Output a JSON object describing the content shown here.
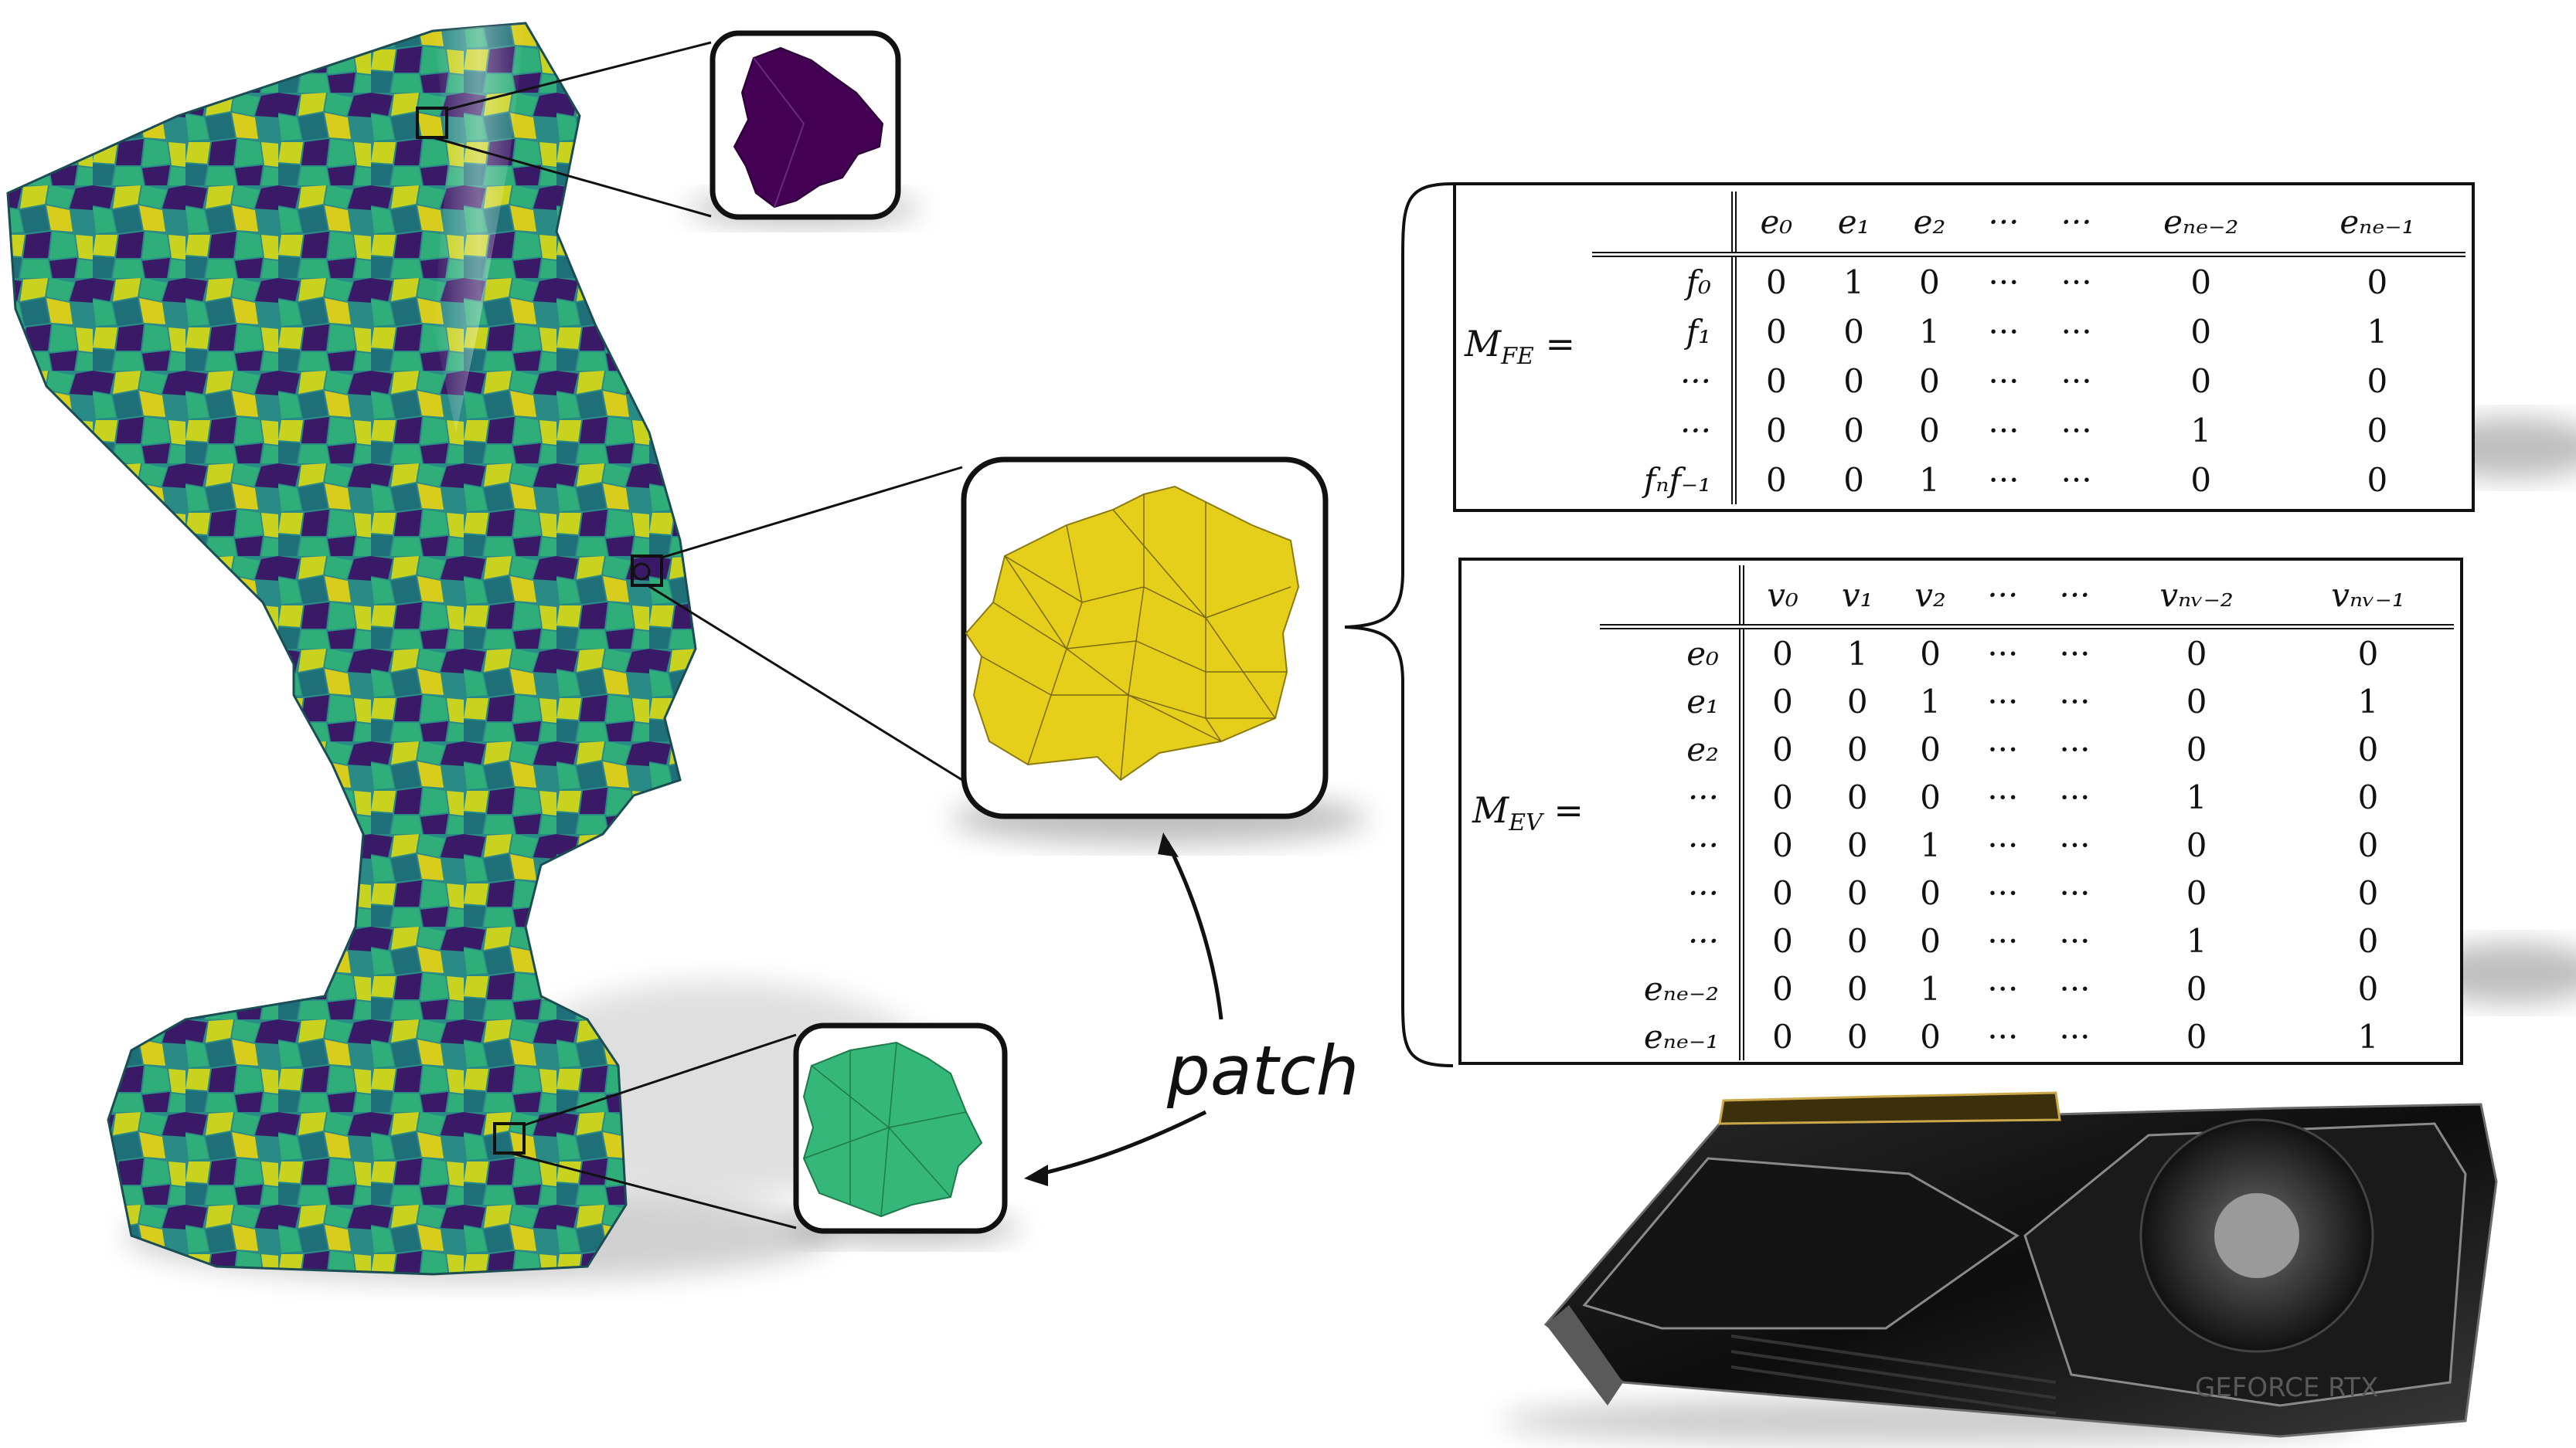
{
  "figure": {
    "patch_label": "patch",
    "gpu_brand_text": "GEFORCE RTX"
  },
  "matrix_fe": {
    "label": "M",
    "label_sub": "FE",
    "equals": "=",
    "columns": [
      "e₀",
      "e₁",
      "e₂",
      "···",
      "···",
      "eₙₑ₋₂",
      "eₙₑ₋₁"
    ],
    "rows": [
      {
        "head": "f₀",
        "cells": [
          "0",
          "1",
          "0",
          "···",
          "···",
          "0",
          "0"
        ]
      },
      {
        "head": "f₁",
        "cells": [
          "0",
          "0",
          "1",
          "···",
          "···",
          "0",
          "1"
        ]
      },
      {
        "head": "···",
        "cells": [
          "0",
          "0",
          "0",
          "···",
          "···",
          "0",
          "0"
        ]
      },
      {
        "head": "···",
        "cells": [
          "0",
          "0",
          "0",
          "···",
          "···",
          "1",
          "0"
        ]
      },
      {
        "head": "fₙf₋₁",
        "cells": [
          "0",
          "0",
          "1",
          "···",
          "···",
          "0",
          "0"
        ]
      }
    ]
  },
  "matrix_ev": {
    "label": "M",
    "label_sub": "EV",
    "equals": "=",
    "columns": [
      "v₀",
      "v₁",
      "v₂",
      "···",
      "···",
      "vₙᵥ₋₂",
      "vₙᵥ₋₁"
    ],
    "rows": [
      {
        "head": "e₀",
        "cells": [
          "0",
          "1",
          "0",
          "···",
          "···",
          "0",
          "0"
        ]
      },
      {
        "head": "e₁",
        "cells": [
          "0",
          "0",
          "1",
          "···",
          "···",
          "0",
          "1"
        ]
      },
      {
        "head": "e₂",
        "cells": [
          "0",
          "0",
          "0",
          "···",
          "···",
          "0",
          "0"
        ]
      },
      {
        "head": "···",
        "cells": [
          "0",
          "0",
          "0",
          "···",
          "···",
          "1",
          "0"
        ]
      },
      {
        "head": "···",
        "cells": [
          "0",
          "0",
          "1",
          "···",
          "···",
          "0",
          "0"
        ]
      },
      {
        "head": "···",
        "cells": [
          "0",
          "0",
          "0",
          "···",
          "···",
          "0",
          "0"
        ]
      },
      {
        "head": "···",
        "cells": [
          "0",
          "0",
          "0",
          "···",
          "···",
          "1",
          "0"
        ]
      },
      {
        "head": "eₙₑ₋₂",
        "cells": [
          "0",
          "0",
          "1",
          "···",
          "···",
          "0",
          "0"
        ]
      },
      {
        "head": "eₙₑ₋₁",
        "cells": [
          "0",
          "0",
          "0",
          "···",
          "···",
          "0",
          "1"
        ]
      }
    ]
  },
  "colors": {
    "purple": "#440154",
    "teal": "#21918c",
    "green": "#35b779",
    "yellow": "#e0d01a",
    "dark_teal": "#1f6f78"
  }
}
